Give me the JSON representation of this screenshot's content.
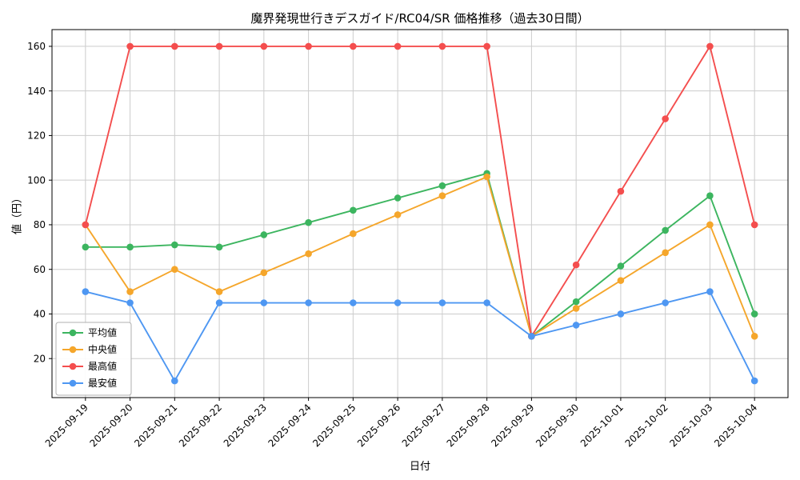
{
  "figure": {
    "background": "#ffffff"
  },
  "chart_data": {
    "type": "line",
    "title": "魔界発現世行きデスガイド/RC04/SR 価格推移（過去30日間）",
    "xlabel": "日付",
    "ylabel": "値（円）",
    "categories": [
      "2025-09-19",
      "2025-09-20",
      "2025-09-21",
      "2025-09-22",
      "2025-09-23",
      "2025-09-24",
      "2025-09-25",
      "2025-09-26",
      "2025-09-27",
      "2025-09-28",
      "2025-09-29",
      "2025-09-30",
      "2025-10-01",
      "2025-10-02",
      "2025-10-03",
      "2025-10-04"
    ],
    "series": [
      {
        "name": "平均値",
        "color": "#3cb55f",
        "values": [
          70,
          70,
          71,
          70,
          75.5,
          81,
          86.5,
          92,
          97.5,
          103,
          30,
          45.5,
          61.5,
          77.5,
          93,
          40
        ]
      },
      {
        "name": "中央値",
        "color": "#f5a62b",
        "values": [
          80,
          50,
          60,
          50,
          58.5,
          67,
          76,
          84.5,
          93,
          101.5,
          30,
          42.5,
          55,
          67.5,
          80,
          30
        ]
      },
      {
        "name": "最高値",
        "color": "#f44e4e",
        "values": [
          80,
          160,
          160,
          160,
          160,
          160,
          160,
          160,
          160,
          160,
          30,
          62,
          95,
          127.5,
          160,
          80
        ]
      },
      {
        "name": "最安値",
        "color": "#4e97f2",
        "values": [
          50,
          45,
          10,
          45,
          45,
          45,
          45,
          45,
          45,
          45,
          30,
          35,
          40,
          45,
          50,
          10
        ]
      }
    ],
    "yticks": [
      20,
      40,
      60,
      80,
      100,
      120,
      140,
      160
    ],
    "ylim": [
      2.5,
      167.5
    ],
    "grid": true,
    "grid_color": "#cccccc",
    "legend_position": "lower left",
    "x_tick_rotation": 45
  }
}
